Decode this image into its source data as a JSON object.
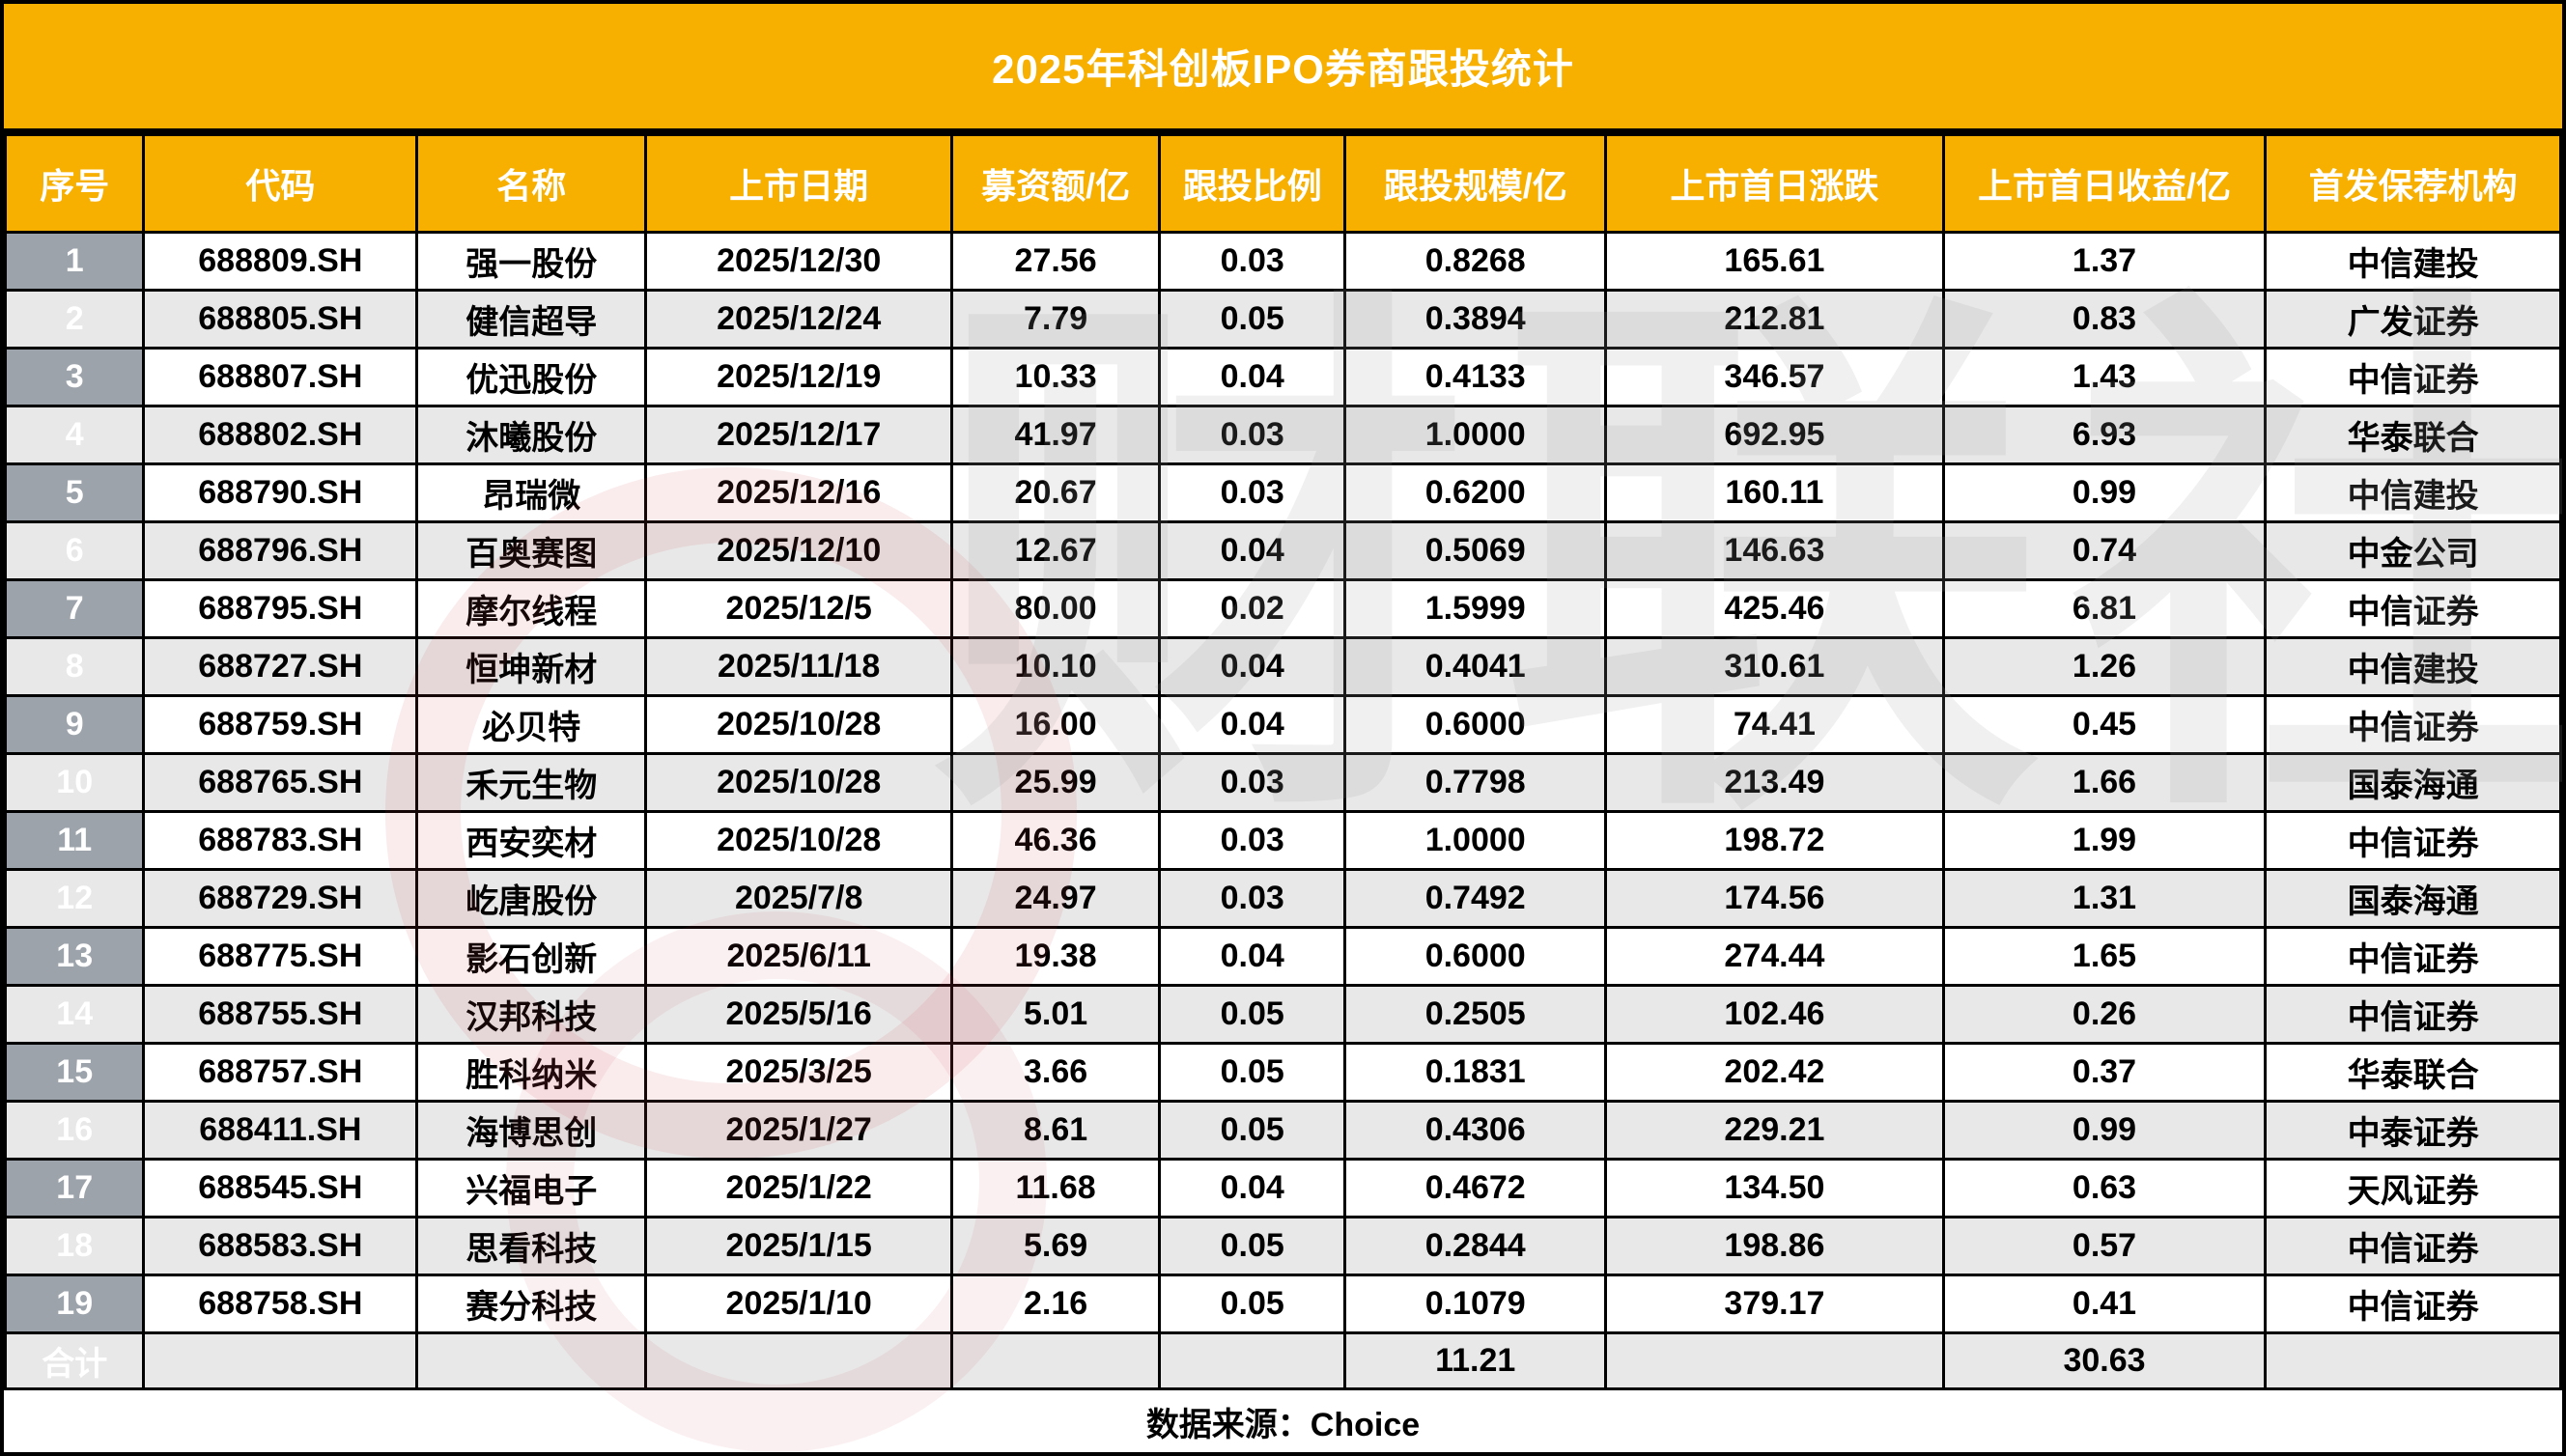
{
  "title": "2025年科创板IPO券商跟投统计",
  "footer": {
    "source": "数据来源：Choice"
  },
  "watermark": {
    "text": "财联社"
  },
  "colors": {
    "header_orange": "#F8B000",
    "index_gray": "#9DA3AB",
    "stripe_gray": "#E8E8E8",
    "border_black": "#000000",
    "header_text": "#FFFFFF",
    "watermark_red": "#CD3C48"
  },
  "chart_data": {
    "type": "table",
    "title": "2025年科创板IPO券商跟投统计",
    "columns": [
      "序号",
      "代码",
      "名称",
      "上市日期",
      "募资额/亿",
      "跟投比例",
      "跟投规模/亿",
      "上市首日涨跌",
      "上市首日收益/亿",
      "首发保荐机构"
    ],
    "rows": [
      [
        "1",
        "688809.SH",
        "强一股份",
        "2025/12/30",
        "27.56",
        "0.03",
        "0.8268",
        "165.61",
        "1.37",
        "中信建投"
      ],
      [
        "2",
        "688805.SH",
        "健信超导",
        "2025/12/24",
        "7.79",
        "0.05",
        "0.3894",
        "212.81",
        "0.83",
        "广发证券"
      ],
      [
        "3",
        "688807.SH",
        "优迅股份",
        "2025/12/19",
        "10.33",
        "0.04",
        "0.4133",
        "346.57",
        "1.43",
        "中信证券"
      ],
      [
        "4",
        "688802.SH",
        "沐曦股份",
        "2025/12/17",
        "41.97",
        "0.03",
        "1.0000",
        "692.95",
        "6.93",
        "华泰联合"
      ],
      [
        "5",
        "688790.SH",
        "昂瑞微",
        "2025/12/16",
        "20.67",
        "0.03",
        "0.6200",
        "160.11",
        "0.99",
        "中信建投"
      ],
      [
        "6",
        "688796.SH",
        "百奥赛图",
        "2025/12/10",
        "12.67",
        "0.04",
        "0.5069",
        "146.63",
        "0.74",
        "中金公司"
      ],
      [
        "7",
        "688795.SH",
        "摩尔线程",
        "2025/12/5",
        "80.00",
        "0.02",
        "1.5999",
        "425.46",
        "6.81",
        "中信证券"
      ],
      [
        "8",
        "688727.SH",
        "恒坤新材",
        "2025/11/18",
        "10.10",
        "0.04",
        "0.4041",
        "310.61",
        "1.26",
        "中信建投"
      ],
      [
        "9",
        "688759.SH",
        "必贝特",
        "2025/10/28",
        "16.00",
        "0.04",
        "0.6000",
        "74.41",
        "0.45",
        "中信证券"
      ],
      [
        "10",
        "688765.SH",
        "禾元生物",
        "2025/10/28",
        "25.99",
        "0.03",
        "0.7798",
        "213.49",
        "1.66",
        "国泰海通"
      ],
      [
        "11",
        "688783.SH",
        "西安奕材",
        "2025/10/28",
        "46.36",
        "0.03",
        "1.0000",
        "198.72",
        "1.99",
        "中信证券"
      ],
      [
        "12",
        "688729.SH",
        "屹唐股份",
        "2025/7/8",
        "24.97",
        "0.03",
        "0.7492",
        "174.56",
        "1.31",
        "国泰海通"
      ],
      [
        "13",
        "688775.SH",
        "影石创新",
        "2025/6/11",
        "19.38",
        "0.04",
        "0.6000",
        "274.44",
        "1.65",
        "中信证券"
      ],
      [
        "14",
        "688755.SH",
        "汉邦科技",
        "2025/5/16",
        "5.01",
        "0.05",
        "0.2505",
        "102.46",
        "0.26",
        "中信证券"
      ],
      [
        "15",
        "688757.SH",
        "胜科纳米",
        "2025/3/25",
        "3.66",
        "0.05",
        "0.1831",
        "202.42",
        "0.37",
        "华泰联合"
      ],
      [
        "16",
        "688411.SH",
        "海博思创",
        "2025/1/27",
        "8.61",
        "0.05",
        "0.4306",
        "229.21",
        "0.99",
        "中泰证券"
      ],
      [
        "17",
        "688545.SH",
        "兴福电子",
        "2025/1/22",
        "11.68",
        "0.04",
        "0.4672",
        "134.50",
        "0.63",
        "天风证券"
      ],
      [
        "18",
        "688583.SH",
        "思看科技",
        "2025/1/15",
        "5.69",
        "0.05",
        "0.2844",
        "198.86",
        "0.57",
        "中信证券"
      ],
      [
        "19",
        "688758.SH",
        "赛分科技",
        "2025/1/10",
        "2.16",
        "0.05",
        "0.1079",
        "379.17",
        "0.41",
        "中信证券"
      ]
    ],
    "total_row": [
      "合计",
      "",
      "",
      "",
      "",
      "",
      "11.21",
      "",
      "30.63",
      ""
    ],
    "source_note": "数据来源：Choice",
    "layout": {
      "grid": true,
      "striped": true,
      "header_position": "top"
    }
  }
}
